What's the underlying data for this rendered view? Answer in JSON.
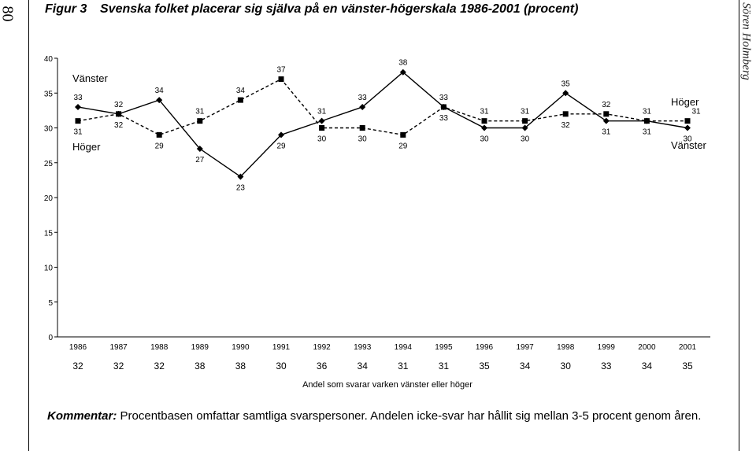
{
  "page": {
    "page_number": "80",
    "author": "Sören Holmberg"
  },
  "figure": {
    "label": "Figur 3",
    "title": "Svenska folket placerar sig själva på en vänster-högerskala 1986-2001 (procent)"
  },
  "comment": {
    "lead": "Kommentar:",
    "text": " Procentbasen omfattar samtliga svarspersoner. Andelen icke-svar har hållit sig mellan 3-5 procent genom åren."
  },
  "chart_data": {
    "type": "line",
    "title": "",
    "xlabel": "",
    "ylabel": "",
    "categories": [
      "1986",
      "1987",
      "1988",
      "1989",
      "1990",
      "1991",
      "1992",
      "1993",
      "1994",
      "1995",
      "1996",
      "1997",
      "1998",
      "1999",
      "2000",
      "2001"
    ],
    "ylim": [
      0,
      40
    ],
    "yticks": [
      0,
      5,
      10,
      15,
      20,
      25,
      30,
      35,
      40
    ],
    "grid": false,
    "series": [
      {
        "name": "Vänster",
        "marker": "diamond",
        "line_style": "solid",
        "values": [
          33,
          32,
          34,
          27,
          23,
          29,
          31,
          33,
          38,
          33,
          30,
          30,
          35,
          31,
          31,
          30
        ],
        "start_label": "Vänster",
        "end_label": "Vänster"
      },
      {
        "name": "Höger",
        "marker": "square",
        "line_style": "dashed",
        "values": [
          31,
          32,
          29,
          31,
          34,
          37,
          30,
          30,
          29,
          33,
          31,
          31,
          32,
          32,
          31,
          31
        ],
        "start_label": "Höger",
        "end_label": "Höger"
      }
    ],
    "neither": {
      "caption": "Andel som svarar varken vänster eller höger",
      "values": [
        32,
        32,
        32,
        38,
        38,
        30,
        36,
        34,
        31,
        31,
        35,
        34,
        30,
        33,
        34,
        35
      ]
    }
  }
}
